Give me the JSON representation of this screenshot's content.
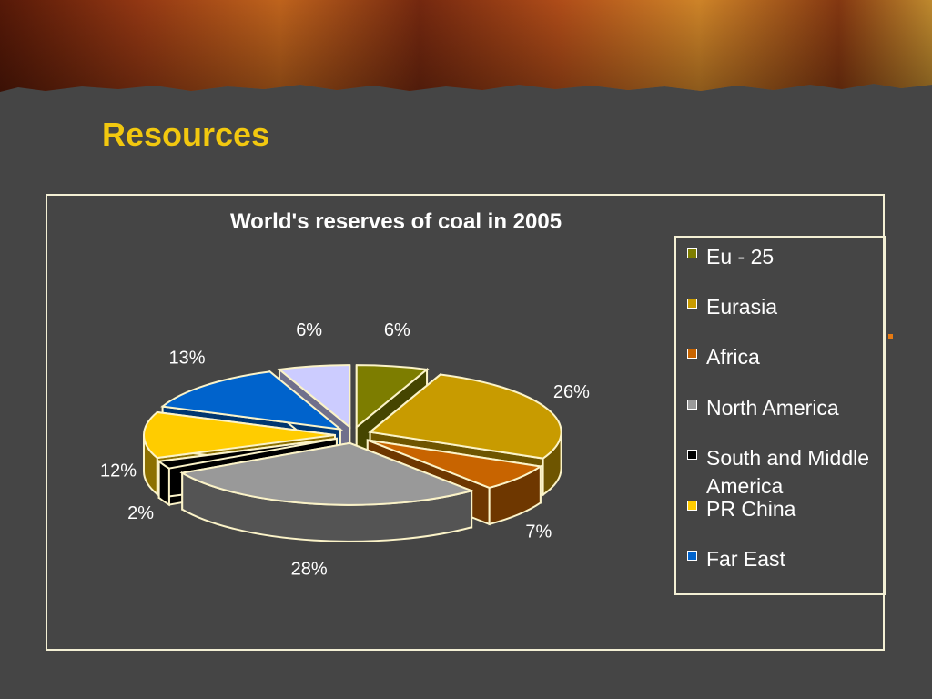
{
  "slide": {
    "title": "Resources"
  },
  "chart_data": {
    "type": "pie",
    "title": "World's reserves of coal in 2005",
    "legend_position": "right",
    "series": [
      {
        "name": "Eu - 25",
        "value": 6,
        "label": "6%",
        "color": "#7d7d00"
      },
      {
        "name": "Eurasia",
        "value": 26,
        "label": "26%",
        "color": "#c89b00"
      },
      {
        "name": "Africa",
        "value": 7,
        "label": "7%",
        "color": "#c86400"
      },
      {
        "name": "North America",
        "value": 28,
        "label": "28%",
        "color": "#999999"
      },
      {
        "name": "South and Middle America",
        "value": 2,
        "label": "2%",
        "color": "#000000"
      },
      {
        "name": "PR China",
        "value": 12,
        "label": "12%",
        "color": "#ffcc00"
      },
      {
        "name": "Far East",
        "value": 13,
        "label": "13%",
        "color": "#0063cc"
      },
      {
        "name": "",
        "value": 6,
        "label": "6%",
        "color": "#ccccff"
      }
    ]
  }
}
